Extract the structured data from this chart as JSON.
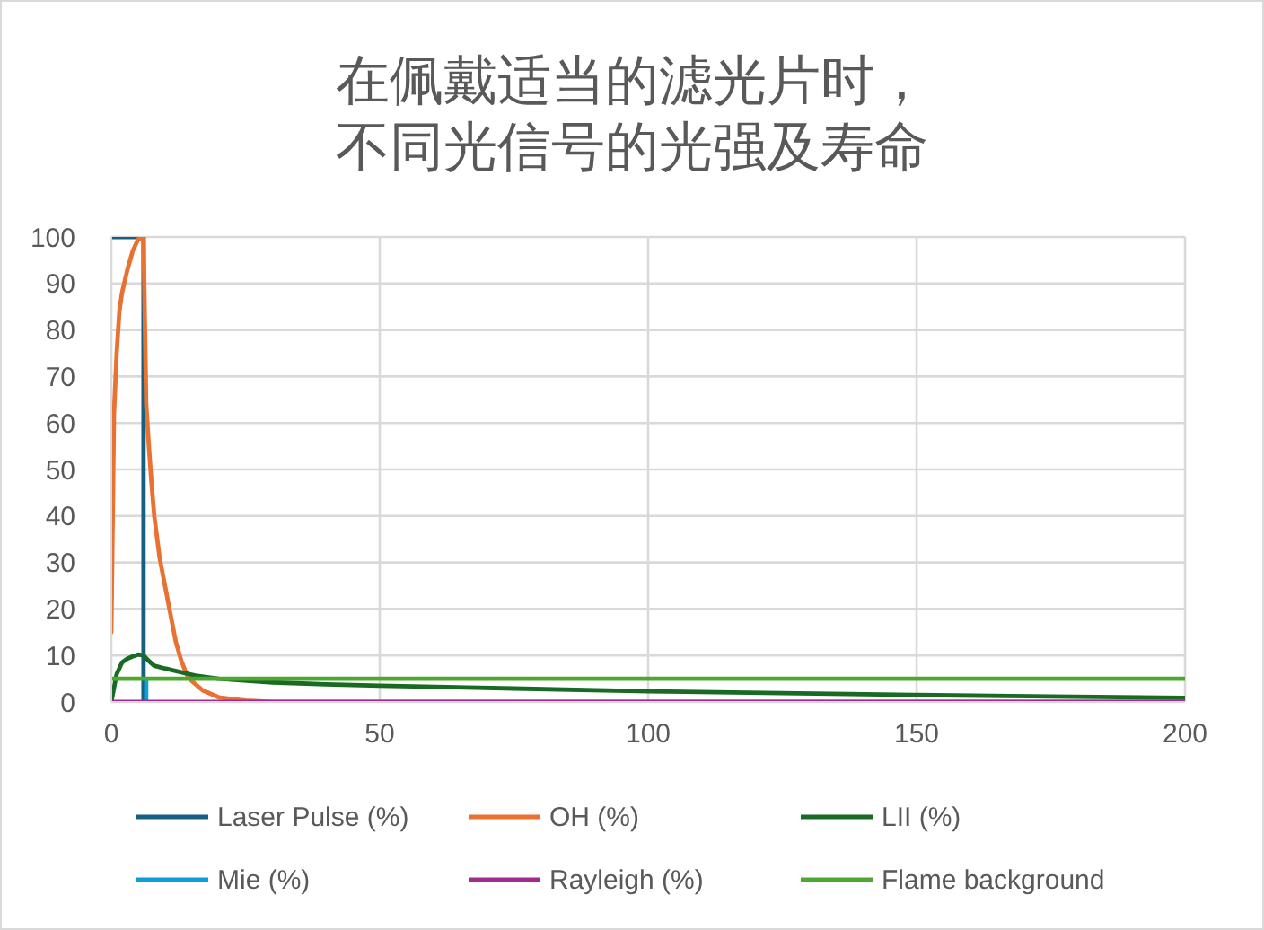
{
  "chart_data": {
    "type": "line",
    "title": "在佩戴适当的滤光片时，不同光信号的光强及寿命",
    "xlim": [
      0,
      200
    ],
    "xticks": [
      0,
      50,
      100,
      150,
      200
    ],
    "ylim": [
      0,
      100
    ],
    "yticks": [
      0,
      10,
      20,
      30,
      40,
      50,
      60,
      70,
      80,
      90,
      100
    ],
    "grid": true,
    "legend": "bottom",
    "marker": "none",
    "line_style": "solid",
    "series": [
      {
        "name": "Laser Pulse (%)",
        "color": "#156082",
        "x": [
          0,
          6,
          6
        ],
        "values": [
          100,
          100,
          0
        ]
      },
      {
        "name": "OH (%)",
        "color": "#e97132",
        "x": [
          0,
          0.5,
          1,
          1.5,
          2,
          3,
          4,
          5,
          6,
          6.5,
          7,
          7.5,
          8,
          9,
          10,
          11,
          12,
          13,
          14,
          15,
          17,
          20,
          25,
          30,
          200
        ],
        "values": [
          15,
          62,
          75,
          84,
          88,
          93,
          97,
          99.5,
          100,
          64,
          55,
          47,
          40,
          31,
          25,
          19,
          13,
          9,
          6,
          4.5,
          2.5,
          1,
          0.3,
          0,
          0
        ]
      },
      {
        "name": "LII (%)",
        "color": "#196b24",
        "x": [
          0,
          0.5,
          1,
          2,
          3,
          4,
          5,
          6,
          7,
          8,
          10,
          13,
          16,
          20,
          30,
          40,
          50,
          75,
          100,
          125,
          150,
          175,
          200
        ],
        "values": [
          0,
          3,
          6,
          8.5,
          9.3,
          9.8,
          10.2,
          10,
          8.8,
          7.8,
          7.2,
          6.4,
          5.6,
          5,
          4.2,
          3.8,
          3.5,
          2.9,
          2.3,
          1.9,
          1.5,
          1.2,
          0.9
        ]
      },
      {
        "name": "Mie (%)",
        "color": "#0f9ed5",
        "x": [
          6.5,
          6.5
        ],
        "values": [
          5,
          0
        ]
      },
      {
        "name": "Rayleigh (%)",
        "color": "#a02b93",
        "x": [
          0,
          200
        ],
        "values": [
          0,
          0
        ]
      },
      {
        "name": "Flame background",
        "color": "#4ea72e",
        "x": [
          0,
          200
        ],
        "values": [
          5,
          5
        ]
      }
    ]
  }
}
